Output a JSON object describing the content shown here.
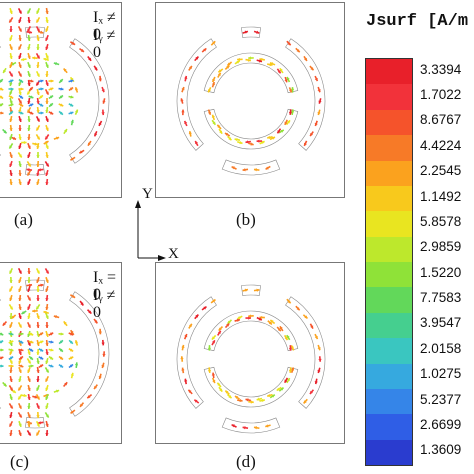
{
  "panels": [
    {
      "label": "(a)",
      "cond_x": "Iₓ ≠ 0",
      "cond_y": "Iᵧ ≠ 0",
      "variant": "full-even"
    },
    {
      "label": "(b)",
      "variant": "rings-only"
    },
    {
      "label": "(c)",
      "cond_x": "Iₓ = 0",
      "cond_y": "Iᵧ ≠ 0",
      "variant": "full-odd"
    },
    {
      "label": "(d)",
      "variant": "rings-only-alt"
    }
  ],
  "axes": {
    "x": "X",
    "y": "Y"
  },
  "legend": {
    "title": "Jsurf [A/m",
    "values": [
      "3.3394",
      "1.7022",
      "8.6767",
      "4.4224",
      "2.2545",
      "1.1492",
      "5.8578",
      "2.9859",
      "1.5220",
      "7.7583",
      "3.9547",
      "2.0158",
      "1.0275",
      "5.2377",
      "2.6699",
      "1.3609"
    ],
    "colors": [
      "#e8202a",
      "#f2323a",
      "#f5532b",
      "#f77a27",
      "#fba21e",
      "#f8c91c",
      "#e9e520",
      "#bde82c",
      "#8fe238",
      "#62d85a",
      "#45cf8f",
      "#3ac6c0",
      "#36a9df",
      "#3585e8",
      "#2f5ee6",
      "#2a3ccf"
    ]
  }
}
